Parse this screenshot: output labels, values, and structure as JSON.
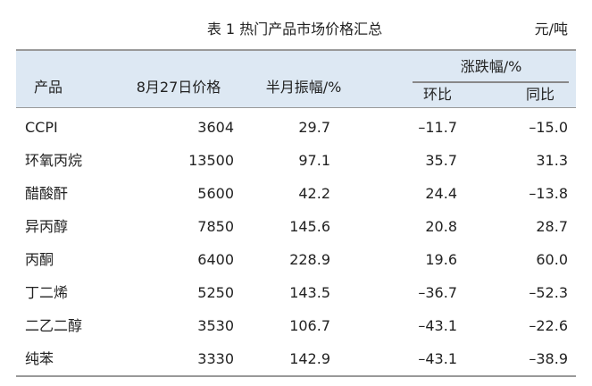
{
  "title": "表 1  热门产品市场价格汇总",
  "unit": "元/吨",
  "header": {
    "product": "产品",
    "price": "8月27日价格",
    "amplitude": "半月振幅/%",
    "change": "涨跌幅/%",
    "mom": "环比",
    "yoy": "同比"
  },
  "rows": [
    [
      "CCPI",
      "3604",
      "29.7",
      "–11.7",
      "–15.0"
    ],
    [
      "环氧丙烷",
      "13500",
      "97.1",
      "35.7",
      "31.3"
    ],
    [
      "醋酸酐",
      "5600",
      "42.2",
      "24.4",
      "–13.8"
    ],
    [
      "异丙醇",
      "7850",
      "145.6",
      "20.8",
      "28.7"
    ],
    [
      "丙酮",
      "6400",
      "228.9",
      "19.6",
      "60.0"
    ],
    [
      "丁二烯",
      "5250",
      "143.5",
      "–36.7",
      "–52.3"
    ],
    [
      "二乙二醇",
      "3530",
      "106.7",
      "–43.1",
      "–22.6"
    ],
    [
      "纯苯",
      "3330",
      "142.9",
      "–43.1",
      "–38.9"
    ]
  ]
}
